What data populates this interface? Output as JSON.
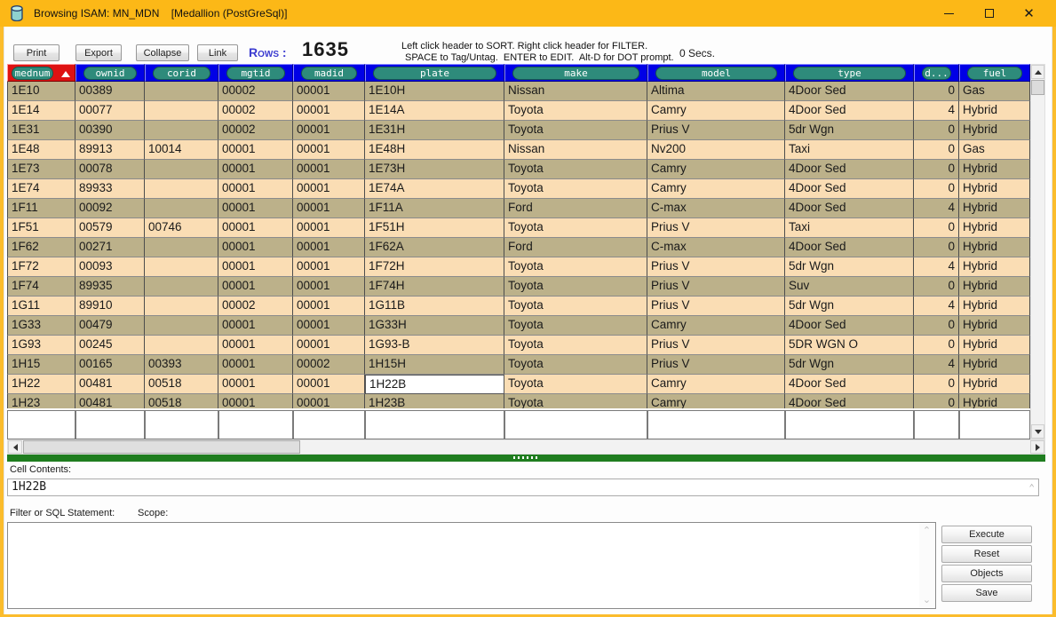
{
  "window": {
    "title": "Browsing ISAM: MN_MDN    [Medallion (PostGreSql)]",
    "icon": "database-cylinder-icon",
    "controls": [
      "minimize",
      "maximize",
      "close"
    ]
  },
  "toolbar": {
    "buttons": [
      "Print",
      "Export",
      "Collapse",
      "Link"
    ],
    "rows_label": "Rows :",
    "rows_count": "1635",
    "instructions_line1": "Left click header to SORT. Right click header for FILTER.",
    "instructions_line2": "SPACE to Tag/Untag.  ENTER to EDIT.  Alt-D for DOT prompt.",
    "elapsed": "0 Secs."
  },
  "grid": {
    "sort": {
      "column": "mednum",
      "direction": "asc"
    },
    "columns": [
      {
        "key": "mednum",
        "label": "mednum",
        "sorted": true
      },
      {
        "key": "ownid",
        "label": "ownid",
        "sorted": false
      },
      {
        "key": "corid",
        "label": "corid",
        "sorted": false
      },
      {
        "key": "mgtid",
        "label": "mgtid",
        "sorted": false
      },
      {
        "key": "madid",
        "label": "madid",
        "sorted": false
      },
      {
        "key": "plate",
        "label": "plate",
        "sorted": false
      },
      {
        "key": "make",
        "label": "make",
        "sorted": false
      },
      {
        "key": "model",
        "label": "model",
        "sorted": false
      },
      {
        "key": "type",
        "label": "type",
        "sorted": false
      },
      {
        "key": "d",
        "label": "d...",
        "sorted": false
      },
      {
        "key": "fuel",
        "label": "fuel",
        "sorted": false
      }
    ],
    "rows": [
      [
        "1E10",
        "00389",
        "",
        "00002",
        "00001",
        "1E10H",
        "Nissan",
        "Altima",
        "4Door Sed",
        "0",
        "Gas"
      ],
      [
        "1E14",
        "00077",
        "",
        "00002",
        "00001",
        "1E14A",
        "Toyota",
        "Camry",
        "4Door Sed",
        "4",
        "Hybrid"
      ],
      [
        "1E31",
        "00390",
        "",
        "00002",
        "00001",
        "1E31H",
        "Toyota",
        "Prius V",
        "5dr Wgn",
        "0",
        "Hybrid"
      ],
      [
        "1E48",
        "89913",
        "10014",
        "00001",
        "00001",
        "1E48H",
        "Nissan",
        "Nv200",
        "Taxi",
        "0",
        "Gas"
      ],
      [
        "1E73",
        "00078",
        "",
        "00001",
        "00001",
        "1E73H",
        "Toyota",
        "Camry",
        "4Door Sed",
        "0",
        "Hybrid"
      ],
      [
        "1E74",
        "89933",
        "",
        "00001",
        "00001",
        "1E74A",
        "Toyota",
        "Camry",
        "4Door Sed",
        "0",
        "Hybrid"
      ],
      [
        "1F11",
        "00092",
        "",
        "00001",
        "00001",
        "1F11A",
        "Ford",
        "C-max",
        "4Door Sed",
        "4",
        "Hybrid"
      ],
      [
        "1F51",
        "00579",
        "00746",
        "00001",
        "00001",
        "1F51H",
        "Toyota",
        "Prius V",
        "Taxi",
        "0",
        "Hybrid"
      ],
      [
        "1F62",
        "00271",
        "",
        "00001",
        "00001",
        "1F62A",
        "Ford",
        "C-max",
        "4Door Sed",
        "0",
        "Hybrid"
      ],
      [
        "1F72",
        "00093",
        "",
        "00001",
        "00001",
        "1F72H",
        "Toyota",
        "Prius V",
        "5dr Wgn",
        "4",
        "Hybrid"
      ],
      [
        "1F74",
        "89935",
        "",
        "00001",
        "00001",
        "1F74H",
        "Toyota",
        "Prius V",
        "Suv",
        "0",
        "Hybrid"
      ],
      [
        "1G11",
        "89910",
        "",
        "00002",
        "00001",
        "1G11B",
        "Toyota",
        "Prius V",
        "5dr Wgn",
        "4",
        "Hybrid"
      ],
      [
        "1G33",
        "00479",
        "",
        "00001",
        "00001",
        "1G33H",
        "Toyota",
        "Camry",
        "4Door Sed",
        "0",
        "Hybrid"
      ],
      [
        "1G93",
        "00245",
        "",
        "00001",
        "00001",
        "1G93-B",
        "Toyota",
        "Prius V",
        "5DR WGN O",
        "0",
        "Hybrid"
      ],
      [
        "1H15",
        "00165",
        "00393",
        "00001",
        "00002",
        "1H15H",
        "Toyota",
        "Prius V",
        "5dr Wgn",
        "4",
        "Hybrid"
      ],
      [
        "1H22",
        "00481",
        "00518",
        "00001",
        "00001",
        "1H22B",
        "Toyota",
        "Camry",
        "4Door Sed",
        "0",
        "Hybrid"
      ],
      [
        "1H23",
        "00481",
        "00518",
        "00001",
        "00001",
        "1H23B",
        "Toyota",
        "Camry",
        "4Door Sed",
        "0",
        "Hybrid"
      ]
    ],
    "selected_cell": {
      "row_index": 15,
      "column_index": 5,
      "value": "1H22B"
    }
  },
  "status": {
    "cell_contents_label": "Cell Contents:",
    "cell_contents_value": "1H22B"
  },
  "filter": {
    "label": "Filter or SQL Statement:",
    "scope_label": "Scope:",
    "value": ""
  },
  "actions": [
    "Execute",
    "Reset",
    "Objects",
    "Save"
  ],
  "colors": {
    "titlebar": "#FCB817",
    "header_bg": "#0000E6",
    "header_pill": "#2E8B7B",
    "sorted_bg": "#DE1212",
    "row_dark": "#BCB18A",
    "row_light": "#FADDB4",
    "progress": "#1F7D1F"
  }
}
